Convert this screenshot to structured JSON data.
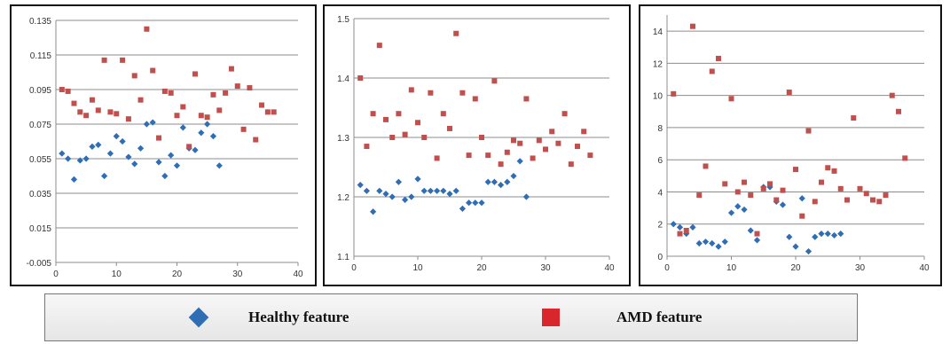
{
  "legend": {
    "healthy_label": "Healthy feature",
    "amd_label": "AMD feature"
  },
  "colors": {
    "healthy": "#2f6db5",
    "amd": "#c0504d",
    "grid": "#8c8c8c"
  },
  "chart_data": [
    {
      "type": "scatter",
      "xlim": [
        0,
        40
      ],
      "ylim": [
        -0.005,
        0.135
      ],
      "x_ticks": [
        0,
        10,
        20,
        30,
        40
      ],
      "y_ticks": [
        -0.005,
        0.015,
        0.035,
        0.055,
        0.075,
        0.095,
        0.115,
        0.135
      ],
      "y_tick_labels": [
        "-0.005",
        "0.015",
        "0.035",
        "0.055",
        "0.075",
        "0.095",
        "0.115",
        "0.135"
      ],
      "grid": true,
      "series": [
        {
          "name": "Healthy feature",
          "marker": "diamond",
          "x": [
            1,
            2,
            3,
            4,
            5,
            6,
            7,
            8,
            9,
            10,
            11,
            12,
            13,
            14,
            15,
            16,
            17,
            18,
            19,
            20,
            21,
            22,
            23,
            24,
            25,
            26,
            27
          ],
          "y": [
            0.058,
            0.055,
            0.043,
            0.054,
            0.055,
            0.062,
            0.063,
            0.045,
            0.058,
            0.068,
            0.065,
            0.056,
            0.052,
            0.061,
            0.075,
            0.076,
            0.053,
            0.045,
            0.057,
            0.051,
            0.073,
            0.061,
            0.06,
            0.07,
            0.075,
            0.068,
            0.051
          ]
        },
        {
          "name": "AMD feature",
          "marker": "square",
          "x": [
            1,
            2,
            3,
            4,
            5,
            6,
            7,
            8,
            9,
            10,
            11,
            12,
            13,
            14,
            15,
            16,
            17,
            18,
            19,
            20,
            21,
            22,
            23,
            24,
            25,
            26,
            27,
            28,
            29,
            30,
            31,
            32,
            33,
            34,
            35,
            36
          ],
          "y": [
            0.095,
            0.094,
            0.087,
            0.082,
            0.08,
            0.089,
            0.083,
            0.112,
            0.082,
            0.081,
            0.112,
            0.078,
            0.103,
            0.089,
            0.13,
            0.106,
            0.067,
            0.094,
            0.093,
            0.08,
            0.085,
            0.062,
            0.104,
            0.08,
            0.079,
            0.092,
            0.083,
            0.093,
            0.107,
            0.097,
            0.072,
            0.096,
            0.066,
            0.086,
            0.082,
            0.082
          ]
        }
      ]
    },
    {
      "type": "scatter",
      "xlim": [
        0,
        40
      ],
      "ylim": [
        1.1,
        1.5
      ],
      "x_ticks": [
        0,
        10,
        20,
        30,
        40
      ],
      "y_ticks": [
        1.1,
        1.2,
        1.3,
        1.4,
        1.5
      ],
      "y_tick_labels": [
        "1.1",
        "1.2",
        "1.3",
        "1.4",
        "1.5"
      ],
      "grid": true,
      "series": [
        {
          "name": "Healthy feature",
          "marker": "diamond",
          "x": [
            1,
            2,
            3,
            4,
            5,
            6,
            7,
            8,
            9,
            10,
            11,
            12,
            13,
            14,
            15,
            16,
            17,
            18,
            19,
            20,
            21,
            22,
            23,
            24,
            25,
            26,
            27
          ],
          "y": [
            1.22,
            1.21,
            1.175,
            1.21,
            1.205,
            1.2,
            1.225,
            1.195,
            1.2,
            1.23,
            1.21,
            1.21,
            1.21,
            1.21,
            1.205,
            1.21,
            1.18,
            1.19,
            1.19,
            1.19,
            1.225,
            1.225,
            1.22,
            1.225,
            1.235,
            1.26,
            1.2
          ]
        },
        {
          "name": "AMD feature",
          "marker": "square",
          "x": [
            1,
            2,
            3,
            4,
            5,
            6,
            7,
            8,
            9,
            10,
            11,
            12,
            13,
            14,
            15,
            16,
            17,
            18,
            19,
            20,
            21,
            22,
            23,
            24,
            25,
            26,
            27,
            28,
            29,
            30,
            31,
            32,
            33,
            34,
            35,
            36,
            37
          ],
          "y": [
            1.4,
            1.285,
            1.34,
            1.455,
            1.33,
            1.3,
            1.34,
            1.305,
            1.38,
            1.325,
            1.3,
            1.375,
            1.265,
            1.34,
            1.315,
            1.475,
            1.375,
            1.27,
            1.365,
            1.3,
            1.27,
            1.395,
            1.255,
            1.275,
            1.295,
            1.29,
            1.365,
            1.265,
            1.295,
            1.28,
            1.31,
            1.29,
            1.34,
            1.255,
            1.285,
            1.31,
            1.27
          ]
        }
      ]
    },
    {
      "type": "scatter",
      "xlim": [
        0,
        40
      ],
      "ylim": [
        0,
        15
      ],
      "x_ticks": [
        0,
        10,
        20,
        30,
        40
      ],
      "y_ticks": [
        0,
        2,
        4,
        6,
        8,
        10,
        12,
        14
      ],
      "y_tick_labels": [
        "0",
        "2",
        "4",
        "6",
        "8",
        "10",
        "12",
        "14"
      ],
      "grid": true,
      "series": [
        {
          "name": "Healthy feature",
          "marker": "diamond",
          "x": [
            1,
            2,
            3,
            4,
            5,
            6,
            7,
            8,
            9,
            10,
            11,
            12,
            13,
            14,
            15,
            16,
            17,
            18,
            19,
            20,
            21,
            22,
            23,
            24,
            25,
            26,
            27
          ],
          "y": [
            2.0,
            1.8,
            1.4,
            1.8,
            0.8,
            0.9,
            0.8,
            0.6,
            0.9,
            2.7,
            3.1,
            2.9,
            1.6,
            1.0,
            4.3,
            4.3,
            3.4,
            3.2,
            1.2,
            0.6,
            3.6,
            0.3,
            1.2,
            1.4,
            1.4,
            1.3,
            1.4
          ]
        },
        {
          "name": "AMD feature",
          "marker": "square",
          "x": [
            1,
            2,
            3,
            4,
            5,
            6,
            7,
            8,
            9,
            10,
            11,
            12,
            13,
            14,
            15,
            16,
            17,
            18,
            19,
            20,
            21,
            22,
            23,
            24,
            25,
            26,
            27,
            28,
            29,
            30,
            31,
            32,
            33,
            34,
            35,
            36,
            37
          ],
          "y": [
            10.1,
            1.4,
            1.6,
            14.3,
            3.8,
            5.6,
            11.5,
            12.3,
            4.5,
            9.8,
            4.0,
            4.6,
            3.8,
            1.4,
            4.2,
            4.5,
            3.5,
            4.1,
            10.2,
            5.4,
            2.5,
            7.8,
            3.4,
            4.6,
            5.5,
            5.3,
            4.2,
            3.5,
            8.6,
            4.2,
            3.9,
            3.5,
            3.4,
            3.8,
            10.0,
            9.0,
            6.1
          ]
        }
      ]
    }
  ]
}
